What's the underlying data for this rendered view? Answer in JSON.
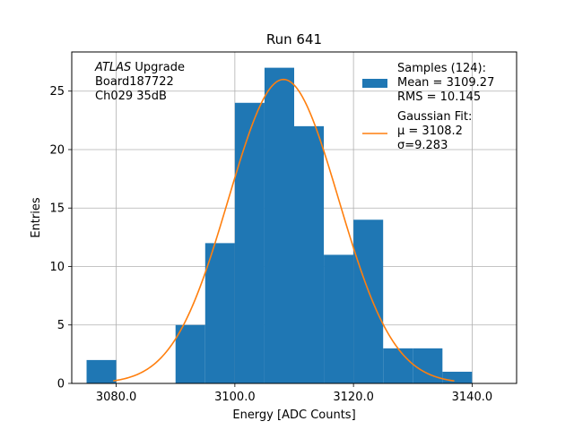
{
  "chart_data": {
    "type": "bar",
    "title": "Run 641",
    "xlabel": "Energy [ADC Counts]",
    "ylabel": "Entries",
    "xlim": [
      3072.5,
      3147.5
    ],
    "ylim": [
      0,
      28.35
    ],
    "xticks": [
      3080.0,
      3100.0,
      3120.0,
      3140.0
    ],
    "xtick_labels": [
      "3080.0",
      "3100.0",
      "3120.0",
      "3140.0"
    ],
    "yticks": [
      0,
      5,
      10,
      15,
      20,
      25
    ],
    "ytick_labels": [
      "0",
      "5",
      "10",
      "15",
      "20",
      "25"
    ],
    "grid": true,
    "histogram": {
      "bin_edges": [
        3075,
        3080,
        3085,
        3090,
        3095,
        3100,
        3105,
        3110,
        3115,
        3120,
        3125,
        3130,
        3135,
        3140
      ],
      "counts": [
        2,
        0,
        0,
        5,
        12,
        24,
        27,
        22,
        11,
        14,
        3,
        3,
        1
      ],
      "color": "#1f77b4"
    },
    "fit": {
      "mu": 3108.2,
      "sigma": 9.283,
      "amplitude": 26.0,
      "x_range": [
        3079.5,
        3137.0
      ],
      "color": "#ff7f0e"
    },
    "annotation_lines": [
      "ATLAS Upgrade",
      " Board187722",
      " Ch029 35dB"
    ],
    "annotation_italic_word": "ATLAS",
    "annotation_rest": " Upgrade",
    "legend": {
      "placement": "top-right",
      "entries": [
        {
          "lines": [
            "Samples (124):",
            " Mean = 3109.27",
            " RMS = 10.145"
          ],
          "marker": "patch",
          "color": "#1f77b4"
        },
        {
          "lines": [
            "Gaussian Fit:",
            " μ = 3108.2",
            " σ=9.283"
          ],
          "marker": "line",
          "color": "#ff7f0e"
        }
      ]
    }
  }
}
